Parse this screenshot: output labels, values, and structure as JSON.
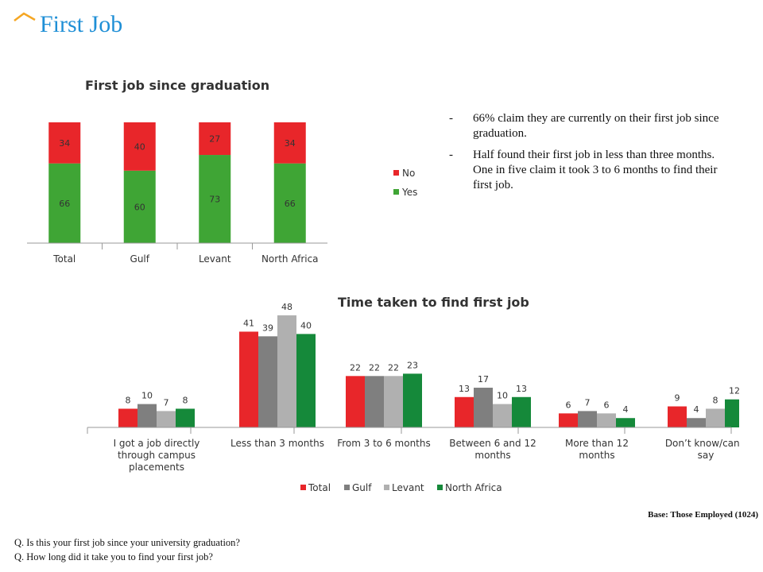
{
  "page": {
    "title": "First Job",
    "bullets": [
      "66% claim they are currently on their first job since graduation.",
      "Half found their first job in less than three months. One in five claim it took  3 to 6 months to find their first job."
    ],
    "bullet_marker": "-",
    "base_note": "Base: Those Employed (1024)",
    "questions": [
      "Q. Is this your first job since your university graduation?",
      "Q. How long did it take you to find your first job?"
    ],
    "accent_color": "#1f8fd6",
    "title_mark_color": "#f5a623"
  },
  "chart_data": [
    {
      "type": "bar",
      "stacked": true,
      "title": "First job since graduation",
      "categories": [
        "Total",
        "Gulf",
        "Levant",
        "North Africa"
      ],
      "series": [
        {
          "name": "Yes",
          "values": [
            66,
            60,
            73,
            66
          ],
          "color": "#3fa535"
        },
        {
          "name": "No",
          "values": [
            34,
            40,
            27,
            34
          ],
          "color": "#e8262a"
        }
      ],
      "ylim": [
        0,
        100
      ],
      "legend": "right",
      "grid": false
    },
    {
      "type": "bar",
      "title": "Time taken to find first job",
      "categories": [
        "I got a job directly through campus placements",
        "Less than 3 months",
        "From 3 to 6 months",
        "Between 6 and 12 months",
        "More than 12 months",
        "Don’t know/can’t say"
      ],
      "category_lines": [
        [
          "I got a job directly",
          "through campus",
          "placements"
        ],
        [
          "Less than 3 months"
        ],
        [
          "From 3 to 6 months"
        ],
        [
          "Between 6 and 12",
          "months"
        ],
        [
          "More than 12",
          "months"
        ],
        [
          "Don’t know/can’t",
          "say"
        ]
      ],
      "series": [
        {
          "name": "Total",
          "values": [
            8,
            41,
            22,
            13,
            6,
            9
          ],
          "color": "#e8262a"
        },
        {
          "name": "Gulf",
          "values": [
            10,
            39,
            22,
            17,
            7,
            4
          ],
          "color": "#7f7f7f"
        },
        {
          "name": "Levant",
          "values": [
            7,
            48,
            22,
            10,
            6,
            8
          ],
          "color": "#b0b0b0"
        },
        {
          "name": "North Africa",
          "values": [
            8,
            40,
            23,
            13,
            4,
            12
          ],
          "color": "#15893a"
        }
      ],
      "ylim": [
        0,
        50
      ],
      "legend": "bottom",
      "grid": false
    }
  ]
}
